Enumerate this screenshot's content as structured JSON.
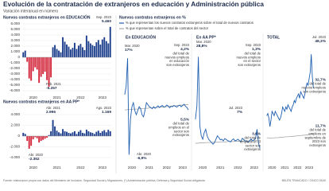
{
  "header": {
    "title": "Evolución de la contratación de extranjeros en educación y Administración pública",
    "subtitle": "Variación interanual en número"
  },
  "percent_section": {
    "title": "Nuevos contratos extranjeros en %"
  },
  "chart_data": [
    {
      "type": "bar",
      "title": "Nuevos contratos extranjeros en EDUCACIÓN",
      "categories": [
        null,
        null,
        null,
        null,
        null,
        "2020",
        null,
        null,
        null,
        null,
        null,
        null,
        null,
        null,
        null,
        null,
        null,
        "2021",
        null,
        null,
        null,
        null,
        null,
        null,
        null,
        null,
        null,
        null,
        null,
        "2022",
        null,
        null,
        null,
        null,
        null,
        null,
        null,
        null,
        null,
        null,
        "2023",
        null,
        null,
        null,
        null
      ],
      "values": [
        900,
        1200,
        -800,
        -3800,
        -4200,
        -2500,
        -1800,
        -2200,
        -4600,
        -3500,
        -3000,
        -2600,
        -4100,
        -5257,
        -3600,
        1800,
        2200,
        1500,
        1200,
        900,
        3600,
        2800,
        2300,
        1900,
        1400,
        1700,
        2600,
        1500,
        2100,
        2400,
        1800,
        1300,
        3900,
        2900,
        2500,
        2200,
        2000,
        2700,
        3100,
        2300,
        3200,
        3600,
        2900,
        2500,
        5460
      ],
      "color": "#1d3f8c",
      "negative_color": "#d3263b",
      "ylim": [
        -6000,
        6000
      ],
      "yticks": [
        {
          "value": 6000,
          "label": "6.000"
        },
        {
          "value": 5000,
          "label": "5.000"
        },
        {
          "value": 4000,
          "label": "4.000"
        },
        {
          "value": 3000,
          "label": "3.000"
        },
        {
          "value": 2000,
          "label": "2.000"
        },
        {
          "value": 1000,
          "label": "1.000"
        },
        0,
        {
          "value": -1000,
          "label": "-1.000"
        },
        {
          "value": -2000,
          "label": "-2.000"
        },
        {
          "value": -3000,
          "label": "-3.000"
        },
        {
          "value": -4000,
          "label": "-4.000"
        },
        {
          "value": -5000,
          "label": "-5.000"
        },
        {
          "value": -6000,
          "label": "-6.000"
        }
      ],
      "grid": true,
      "annotations": [
        [
          "Sep. 2023",
          "5.460"
        ],
        [
          "Feb. 2021",
          "-5.257"
        ]
      ]
    },
    {
      "type": "bar",
      "title": "Nuevos contratos extranjeros en AA PP*",
      "categories": [
        null,
        null,
        null,
        null,
        null,
        "2020",
        null,
        null,
        null,
        null,
        null,
        null,
        null,
        null,
        null,
        null,
        null,
        "2021",
        null,
        null,
        null,
        null,
        null,
        null,
        null,
        null,
        null,
        null,
        null,
        "2022",
        null,
        null,
        null,
        null,
        null,
        null,
        null,
        null,
        null,
        null,
        "2023",
        null,
        null,
        null,
        null
      ],
      "values": [
        600,
        400,
        -900,
        -2352,
        -1800,
        -600,
        -200,
        -400,
        -1200,
        -900,
        -700,
        -500,
        -300,
        200,
        900,
        2996,
        1800,
        1000,
        700,
        500,
        1300,
        900,
        800,
        600,
        500,
        700,
        900,
        400,
        800,
        1100,
        600,
        500,
        1200,
        900,
        700,
        600,
        400,
        800,
        1000,
        600,
        900,
        1100,
        700,
        1169,
        900
      ],
      "color": "#1d3f8c",
      "negative_color": "#d3263b",
      "ylim": [
        -4000,
        4000
      ],
      "yticks": [
        {
          "value": 4000,
          "label": "4.000"
        },
        {
          "value": 2000,
          "label": "2.000"
        },
        0,
        {
          "value": -2000,
          "label": "-2.000"
        },
        {
          "value": -4000,
          "label": "-4.000"
        }
      ],
      "grid": true,
      "annotations": [
        [
          "Abr. 2021",
          "2.996"
        ],
        [
          "Ago. 2023",
          "1.169"
        ],
        [
          "Abr. 2020",
          "-2.352"
        ]
      ]
    },
    {
      "type": "line",
      "title": "En EDUCACIÓN",
      "categories": [
        null,
        null,
        null,
        null,
        null,
        "2020",
        null,
        null,
        null,
        null,
        null,
        null,
        null,
        null,
        null,
        null,
        null,
        "2021",
        null,
        null,
        null,
        null,
        null,
        null,
        null,
        null,
        null,
        null,
        null,
        "2022",
        null,
        null,
        null,
        null,
        null,
        null,
        null,
        null,
        null,
        null,
        "2023",
        null,
        null,
        null,
        null
      ],
      "series": [
        {
          "name": "% que representan los nuevos contratos extranjeros sobre el total de nuevos contratos",
          "color": "#1f5fb0",
          "values": [
            8,
            10,
            17,
            -6.9,
            2,
            5,
            6,
            4,
            3,
            4,
            5,
            4.5,
            3,
            2.5,
            4,
            6,
            5.5,
            5,
            4.8,
            4.5,
            5,
            4.6,
            4.9,
            5.2,
            4.8,
            5.1,
            5.3,
            4.9,
            5,
            5.4,
            5.2,
            4.7,
            5.1,
            5,
            5.3,
            5.1,
            4.9,
            5.2,
            5.4,
            5,
            5.3,
            5.6,
            5.1,
            4.8,
            4.2
          ]
        },
        {
          "name": "% que representan sobre el total de contratos del sector",
          "color": "#a8a8a8",
          "values": [
            4.2,
            4.2,
            4.3,
            4.3,
            4.3,
            4.3,
            4.4,
            4.4,
            4.4,
            4.4,
            4.5,
            4.5,
            4.5,
            4.5,
            4.6,
            4.6,
            4.6,
            4.7,
            4.7,
            4.7,
            4.7,
            4.8,
            4.8,
            4.8,
            4.9,
            4.9,
            4.9,
            5.0,
            5.0,
            5.0,
            5.1,
            5.1,
            5.1,
            5.2,
            5.2,
            5.2,
            5.3,
            5.3,
            5.3,
            5.4,
            5.4,
            5.4,
            5.5,
            5.5,
            5.5
          ]
        }
      ],
      "ylim": [
        -8,
        20
      ],
      "annotations": [
        [
          "Mar. 2020",
          "17%"
        ],
        [
          "Abr. 2020",
          "-6,9%"
        ],
        [
          "Sep. 2023",
          "4,2%",
          "del total de",
          "nuevos empleos",
          "en educación",
          "son extranjeros"
        ],
        [
          "5,5%",
          "del total de",
          "empleos en el",
          "sector son",
          "extranjeros"
        ]
      ]
    },
    {
      "type": "line",
      "title": "En AA PP*",
      "categories": [
        null,
        null,
        null,
        null,
        null,
        "2020",
        null,
        null,
        null,
        null,
        null,
        null,
        null,
        null,
        null,
        null,
        null,
        "2021",
        null,
        null,
        null,
        null,
        null,
        null,
        null,
        null,
        null,
        null,
        null,
        "2022",
        null,
        null,
        null,
        null,
        null,
        null,
        null,
        null,
        null,
        null,
        "2023",
        null,
        null,
        null,
        null
      ],
      "series": [
        {
          "color": "#1f5fb0",
          "values": [
            10,
            14,
            28.8,
            8,
            5,
            4,
            6,
            7,
            5,
            4,
            3.5,
            3,
            2.5,
            3,
            4,
            5,
            4.5,
            3.8,
            4,
            3.5,
            4.2,
            3.9,
            3.6,
            3.4,
            3.2,
            3.8,
            4.1,
            3.5,
            3.7,
            4,
            3.6,
            3.3,
            4.3,
            3.9,
            3.5,
            3.4,
            3.1,
            3.6,
            4,
            3.5,
            3.8,
            4.2,
            7,
            3,
            1.3
          ]
        },
        {
          "color": "#a8a8a8",
          "values": [
            2.8,
            2.8,
            2.8,
            2.9,
            2.9,
            2.9,
            2.9,
            3.0,
            3.0,
            3.0,
            3.0,
            3.0,
            3.1,
            3.1,
            3.1,
            3.1,
            3.1,
            3.2,
            3.2,
            3.2,
            3.2,
            3.2,
            3.3,
            3.3,
            3.3,
            3.3,
            3.3,
            3.4,
            3.4,
            3.4,
            3.4,
            3.4,
            3.4,
            3.5,
            3.5,
            3.5,
            3.5,
            3.5,
            3.5,
            3.5,
            3.6,
            3.6,
            3.6,
            3.6,
            3.6
          ]
        }
      ],
      "ylim": [
        -2,
        32
      ],
      "annotations": [
        [
          "Mar. 2020",
          "28,8%"
        ],
        [
          "Sep. 2023",
          "1,3%",
          "del total de",
          "nuevos empleos",
          "en el sector",
          "son extranjeros"
        ],
        [
          "Jul. 2023",
          "7%"
        ],
        [
          "3,6%",
          "del total de",
          "empleos en el",
          "sector son",
          "extranjeros"
        ]
      ]
    },
    {
      "type": "line",
      "title": "TOTAL",
      "categories": [
        null,
        null,
        null,
        null,
        null,
        "2020",
        null,
        null,
        null,
        null,
        null,
        null,
        null,
        null,
        null,
        null,
        null,
        "2021",
        null,
        null,
        null,
        null,
        null,
        null,
        null,
        null,
        null,
        null,
        null,
        "2022",
        null,
        null,
        null,
        null,
        null,
        null,
        null,
        null,
        null,
        null,
        "2023",
        null,
        null,
        null,
        null
      ],
      "series": [
        {
          "color": "#1f5fb0",
          "values": [
            20,
            21,
            19,
            15,
            18,
            22,
            21,
            20,
            22,
            21,
            20,
            19,
            18,
            19,
            21,
            24,
            23,
            22,
            24,
            23,
            25,
            24,
            23,
            22,
            24,
            25,
            27,
            26,
            28,
            29,
            30,
            28,
            31,
            30,
            29,
            28,
            30,
            33,
            35,
            34,
            37,
            40,
            48.3,
            38,
            32.7
          ]
        },
        {
          "color": "#a8a8a8",
          "values": [
            9.8,
            9.8,
            9.8,
            9.7,
            9.6,
            9.7,
            9.8,
            9.8,
            9.9,
            9.9,
            9.9,
            9.9,
            10.0,
            10.0,
            10.1,
            10.1,
            10.2,
            10.2,
            10.3,
            10.3,
            10.3,
            10.4,
            10.4,
            10.4,
            10.5,
            10.5,
            10.6,
            10.6,
            10.7,
            10.7,
            10.8,
            10.8,
            10.9,
            10.9,
            11.0,
            11.0,
            11.1,
            11.1,
            11.2,
            11.2,
            11.3,
            11.4,
            11.5,
            11.6,
            11.7
          ]
        }
      ],
      "ylim": [
        0,
        52
      ],
      "annotations": [
        [
          "Jul. 2023",
          "48,3%"
        ],
        [
          "32,7%",
          "del total de",
          "nuevos empleos",
          "son extranjeros"
        ],
        [
          "11,7%",
          "del total de",
          "empleos en",
          "septiembre de",
          "2023 son",
          "extranjeros"
        ]
      ]
    }
  ],
  "footer": {
    "source": "Fuente: elaboración propia con datos del Ministerio de Inclusión, Seguridad Social y Migraciones. (*) Administración pública, Defensa y Seguridad Social obligatoria",
    "credit": "BELÉN TRANCADO / CINCO DÍAS"
  }
}
